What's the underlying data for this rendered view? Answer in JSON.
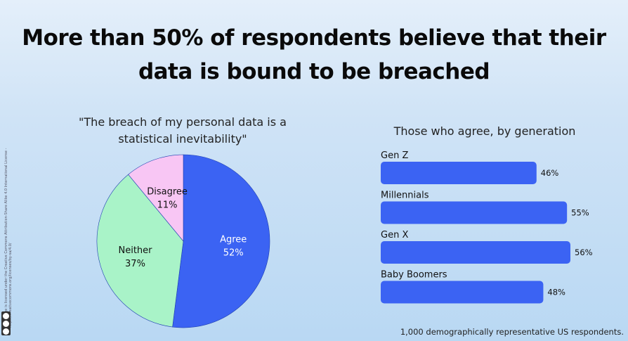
{
  "title": "More than 50% of respondents believe that their data is bound to be breached",
  "footnote": "1,000 demographically representative US respondents.",
  "license_text": "This image is licensed under the Creative Commons Attribution-Share Alike 4.0 International License - https://creativecommons.org/licenses/by-sa/4.0/",
  "chart_data": [
    {
      "type": "pie",
      "title": "\"The breach of my personal data is a statistical inevitability\"",
      "slices": [
        {
          "label": "Agree",
          "value": 52,
          "display": "52%",
          "color": "#3b63f3",
          "text_color": "#ffffff"
        },
        {
          "label": "Neither",
          "value": 37,
          "display": "37%",
          "color": "#a9f3c8",
          "text_color": "#111111"
        },
        {
          "label": "Disagree",
          "value": 11,
          "display": "11%",
          "color": "#f8c6f4",
          "text_color": "#111111"
        }
      ]
    },
    {
      "type": "bar",
      "orientation": "horizontal",
      "title": "Those who agree, by generation",
      "categories": [
        "Gen Z",
        "Millennials",
        "Gen X",
        "Baby Boomers"
      ],
      "values": [
        46,
        55,
        56,
        48
      ],
      "value_labels": [
        "46%",
        "55%",
        "56%",
        "48%"
      ],
      "xlim": [
        0,
        56
      ],
      "color": "#3b63f3"
    }
  ]
}
